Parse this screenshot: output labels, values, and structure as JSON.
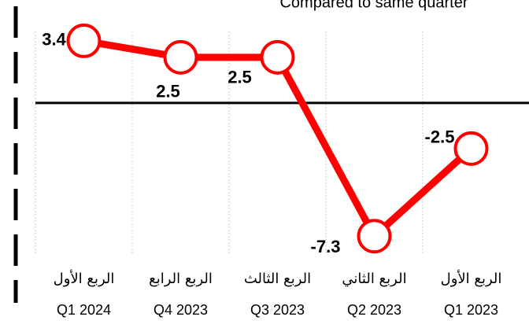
{
  "chart_data": {
    "type": "line",
    "title": "Compared to same quarter",
    "categories": [
      [
        "الربع الأول",
        "Q1 2024"
      ],
      [
        "الربع الرابع",
        "Q4 2023"
      ],
      [
        "الربع الثالث",
        "Q3 2023"
      ],
      [
        "الربع الثاني",
        "Q2 2023"
      ],
      [
        "الربع الأول",
        "Q1 2023"
      ]
    ],
    "values": [
      3.4,
      2.5,
      2.5,
      -7.3,
      -2.5
    ],
    "color": "#ff0000",
    "ylim": [
      -8,
      4
    ],
    "grid": true
  }
}
